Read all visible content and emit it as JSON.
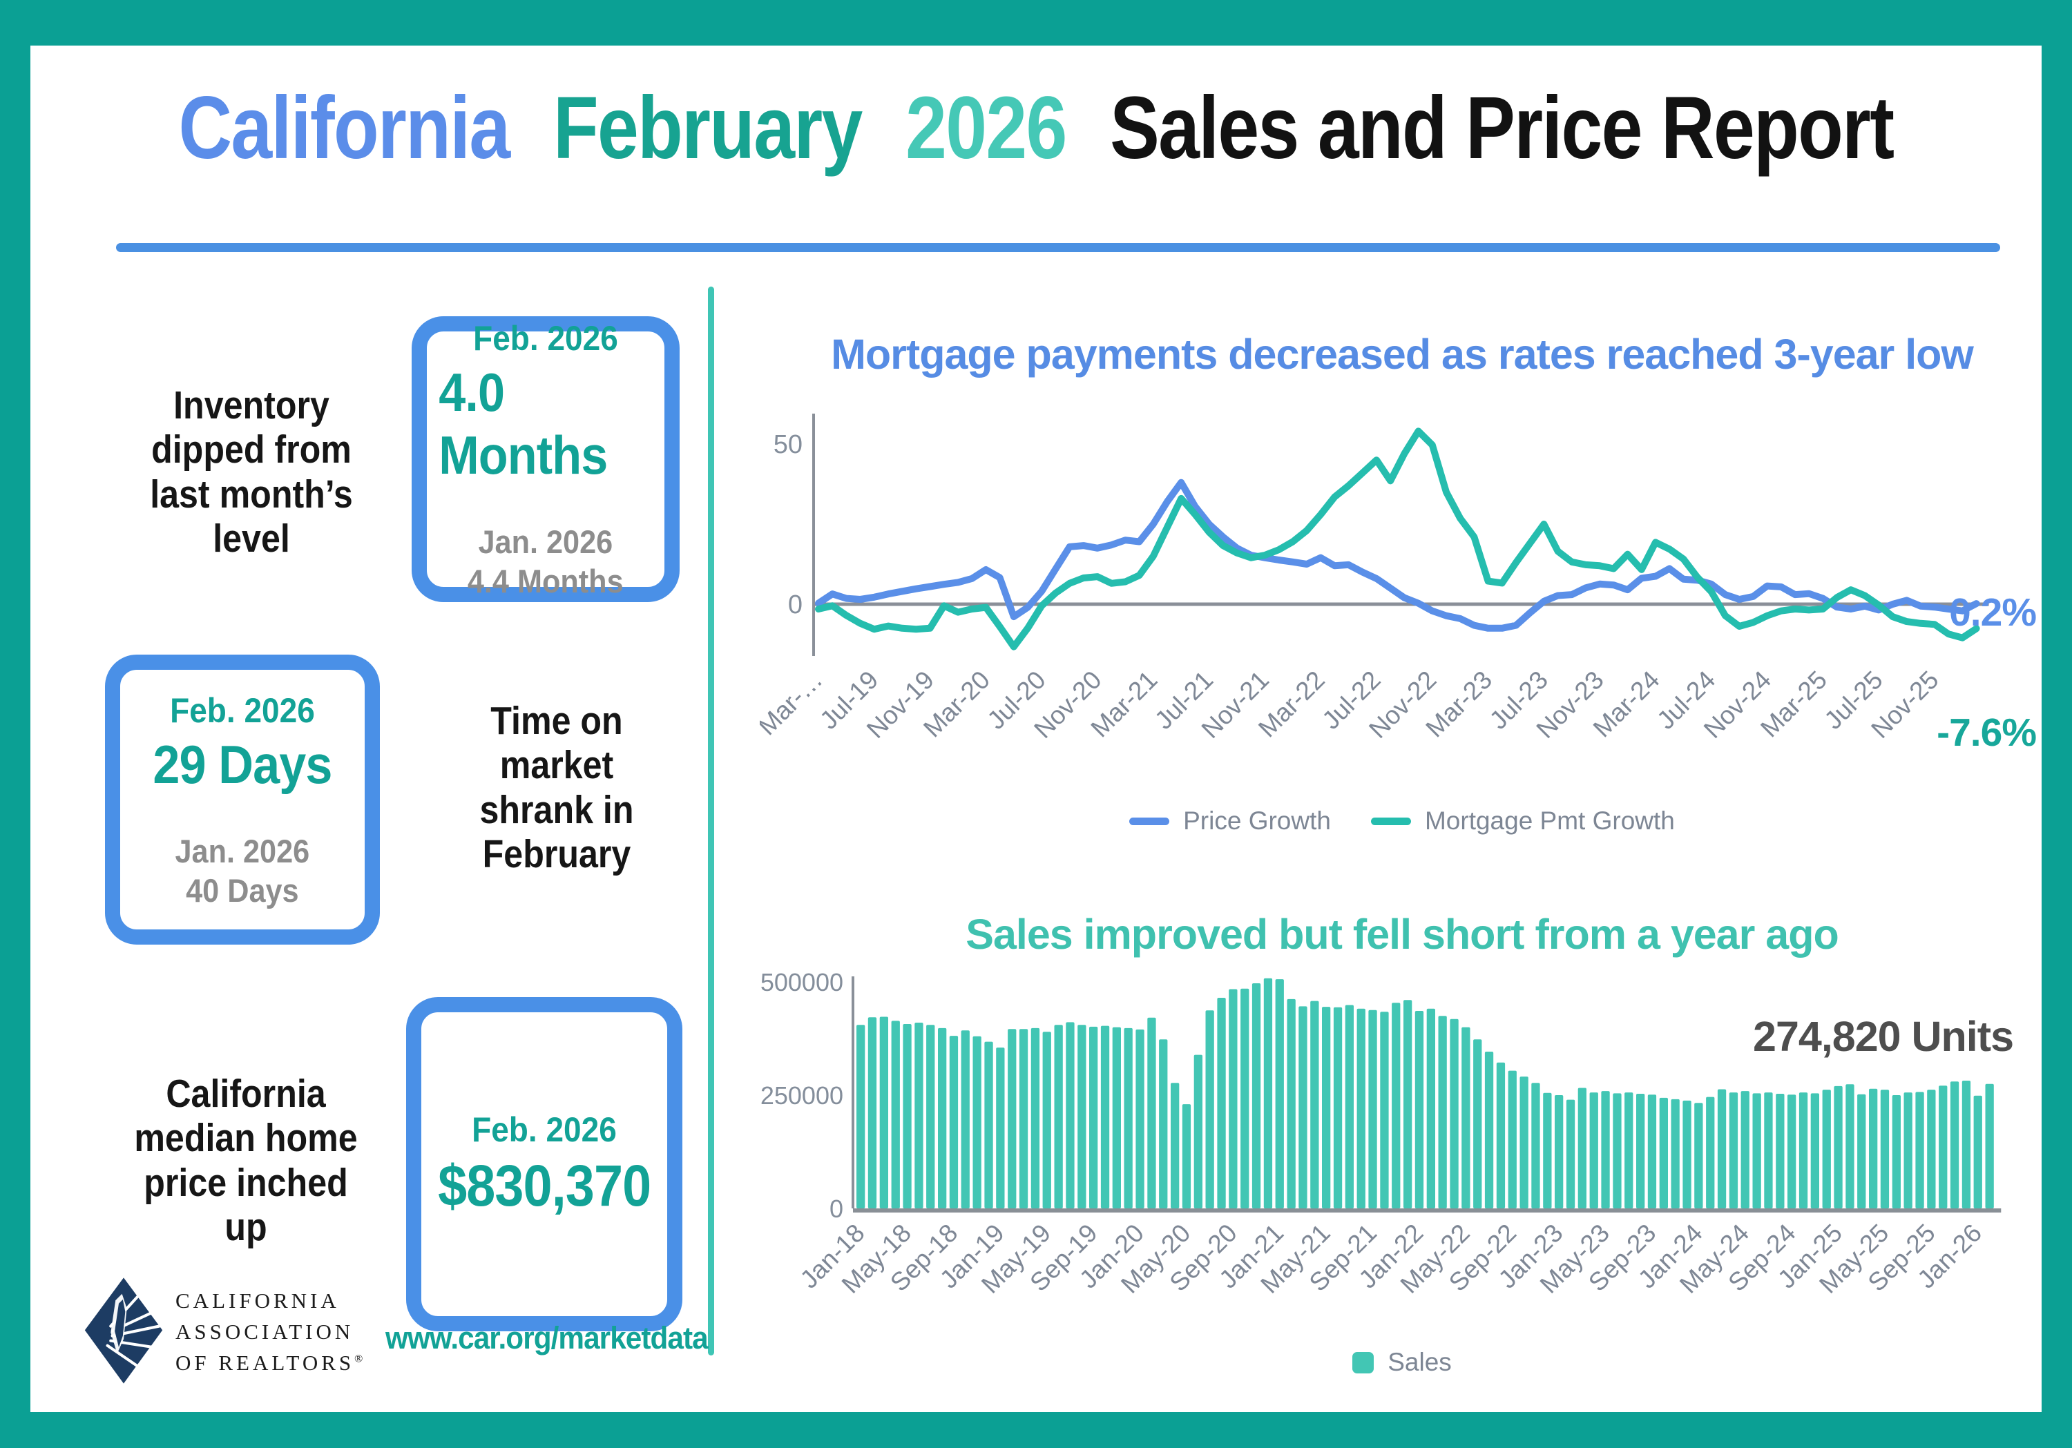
{
  "header": {
    "title_parts": [
      {
        "text": "California",
        "color": "#5b8de9"
      },
      {
        "text": "February",
        "color": "#17a391"
      },
      {
        "text": "2026",
        "color": "#45c8b6"
      },
      {
        "text": "Sales and Price Report",
        "color": "#121212"
      }
    ]
  },
  "colors": {
    "frame_teal": "#0ba094",
    "divider_teal": "#3fc5b5",
    "underline_blue": "#4a90e2",
    "box_border_blue": "#4a90e7",
    "stat_teal": "#12a296",
    "stat_gray": "#8d8d8d",
    "chart1_title_blue": "#568ce4",
    "chart2_title_teal": "#3fc1af",
    "price_line_blue": "#5a8fe8",
    "mortgage_line_teal": "#25bdae",
    "bar_teal": "#42c6b4",
    "end_label_teal": "#17a79a",
    "axis_gray": "#7e8795",
    "annotation_gray": "#4e4e4e",
    "logo_navy": "#1d3c63"
  },
  "stats": [
    {
      "label": "Inventory\ndipped from\nlast month’s\nlevel",
      "current_period": "Feb. 2026",
      "current_value": "4.0 Months",
      "prev_period": "Jan. 2026",
      "prev_value": "4.4 Months"
    },
    {
      "label": "Time on\nmarket\nshrank in\nFebruary",
      "current_period": "Feb. 2026",
      "current_value": "29 Days",
      "prev_period": "Jan. 2026",
      "prev_value": "40 Days"
    },
    {
      "label": "California\nmedian home\nprice inched\nup",
      "current_period": "Feb. 2026",
      "current_value": "$830,370"
    }
  ],
  "footer": {
    "logo_lines": "CALIFORNIA\nASSOCIATION\nOF REALTORS",
    "logo_reg": "®",
    "url": "www.car.org/marketdata"
  },
  "chart_data": [
    {
      "type": "line",
      "title": "Mortgage payments decreased as rates reached 3-year low",
      "x_start": "Mar-2019",
      "x_end": "Feb-2026",
      "interval": "monthly",
      "x_tick_labels": [
        "Mar-…",
        "Jul-19",
        "Nov-19",
        "Mar-20",
        "Jul-20",
        "Nov-20",
        "Mar-21",
        "Jul-21",
        "Nov-21",
        "Mar-22",
        "Jul-22",
        "Nov-22",
        "Mar-23",
        "Jul-23",
        "Nov-23",
        "Mar-24",
        "Jul-24",
        "Nov-24",
        "Mar-25",
        "Jul-25",
        "Nov-25"
      ],
      "x_tick_every": 4,
      "y_ticks": [
        "50",
        "0"
      ],
      "ylim": [
        -16,
        59
      ],
      "grid": false,
      "legend_position": "bottom",
      "series": [
        {
          "name": "Price Growth",
          "color": "#5a8fe8",
          "values": [
            0.3,
            3.2,
            1.8,
            1.5,
            2.2,
            3.2,
            4.0,
            4.8,
            5.5,
            6.2,
            6.8,
            8.0,
            10.8,
            8.3,
            -3.9,
            -1.0,
            4.0,
            11.0,
            17.9,
            18.3,
            17.5,
            18.5,
            20.0,
            19.5,
            25.0,
            32.0,
            38.0,
            30.5,
            25.0,
            21.0,
            17.5,
            15.3,
            14.5,
            13.8,
            13.2,
            12.5,
            14.5,
            12.0,
            12.3,
            10.0,
            8.0,
            5.0,
            2.0,
            0.3,
            -2.1,
            -3.6,
            -4.5,
            -6.6,
            -7.5,
            -7.5,
            -6.6,
            -2.7,
            0.9,
            2.7,
            3.0,
            5.1,
            6.3,
            6.0,
            4.5,
            8.1,
            8.7,
            11.1,
            7.8,
            7.5,
            6.3,
            3.0,
            1.5,
            2.4,
            5.7,
            5.4,
            3.0,
            3.3,
            1.8,
            -0.9,
            -1.5,
            -0.6,
            -1.8,
            0.0,
            1.2,
            -0.6,
            -0.9,
            -1.5,
            -2.1,
            0.2
          ]
        },
        {
          "name": "Mortgage Pmt Growth",
          "color": "#25bdae",
          "values": [
            -1.5,
            -0.5,
            -3.5,
            -6.0,
            -7.8,
            -6.8,
            -7.5,
            -7.8,
            -7.5,
            -0.5,
            -2.5,
            -1.5,
            -1.0,
            -7.0,
            -13.3,
            -7.5,
            -0.5,
            3.5,
            6.5,
            8.2,
            8.6,
            6.5,
            7.0,
            9.0,
            15.0,
            24.0,
            33.0,
            28.0,
            22.5,
            18.3,
            16.0,
            14.5,
            15.3,
            17.0,
            19.5,
            23.0,
            28.0,
            33.5,
            37.0,
            41.0,
            45.0,
            38.5,
            47.0,
            54.0,
            49.7,
            35.0,
            26.8,
            21.0,
            7.2,
            6.6,
            13.0,
            19.0,
            25.0,
            16.5,
            13.2,
            12.3,
            12.0,
            11.1,
            15.6,
            10.8,
            19.3,
            17.2,
            14.1,
            8.4,
            3.9,
            -3.6,
            -6.9,
            -5.7,
            -3.6,
            -2.1,
            -1.5,
            -1.8,
            -1.5,
            2.1,
            4.5,
            2.7,
            -0.3,
            -3.9,
            -5.4,
            -6.0,
            -6.3,
            -9.3,
            -10.5,
            -7.6
          ]
        }
      ],
      "end_labels": [
        {
          "text": "0.2%",
          "color": "#5a8fe8"
        },
        {
          "text": "-7.6%",
          "color": "#17a79a"
        }
      ]
    },
    {
      "type": "bar",
      "title": "Sales improved but fell short from a year ago",
      "annotation": "274,820 Units",
      "x_start": "Jan-2018",
      "x_end": "Feb-2026",
      "interval": "monthly",
      "x_tick_labels": [
        "Jan-18",
        "May-18",
        "Sep-18",
        "Jan-19",
        "May-19",
        "Sep-19",
        "Jan-20",
        "May-20",
        "Sep-20",
        "Jan-21",
        "May-21",
        "Sep-21",
        "Jan-22",
        "May-22",
        "Sep-22",
        "Jan-23",
        "May-23",
        "Sep-23",
        "Jan-24",
        "May-24",
        "Sep-24",
        "Jan-25",
        "May-25",
        "Sep-25",
        "Jan-26"
      ],
      "x_tick_every": 4,
      "y_ticks": [
        "500000",
        "250000",
        "0"
      ],
      "ylim": [
        0,
        520000
      ],
      "grid": false,
      "legend_position": "bottom",
      "series": [
        {
          "name": "Sales",
          "color": "#42c6b4",
          "values": [
            405000,
            422000,
            423000,
            414000,
            407000,
            410000,
            405000,
            398000,
            381000,
            393000,
            380000,
            368000,
            355000,
            396000,
            396000,
            398000,
            390000,
            405000,
            411000,
            405000,
            401000,
            403000,
            400000,
            398000,
            395000,
            421000,
            373000,
            277000,
            230000,
            339000,
            437000,
            465000,
            484000,
            485000,
            497000,
            508000,
            506000,
            462000,
            446000,
            458000,
            445000,
            444000,
            449000,
            441000,
            438000,
            434000,
            454000,
            460000,
            436000,
            441000,
            425000,
            418000,
            400000,
            373000,
            346000,
            322000,
            304000,
            291000,
            277000,
            255000,
            250000,
            240000,
            266000,
            256000,
            259000,
            254000,
            256000,
            253000,
            251000,
            244000,
            241000,
            238000,
            233000,
            246000,
            263000,
            256000,
            259000,
            254000,
            256000,
            253000,
            251000,
            256000,
            254000,
            262000,
            270000,
            274000,
            252000,
            264000,
            262000,
            250000,
            256000,
            257000,
            262000,
            271000,
            280000,
            282000,
            249000,
            274820
          ]
        }
      ]
    }
  ]
}
